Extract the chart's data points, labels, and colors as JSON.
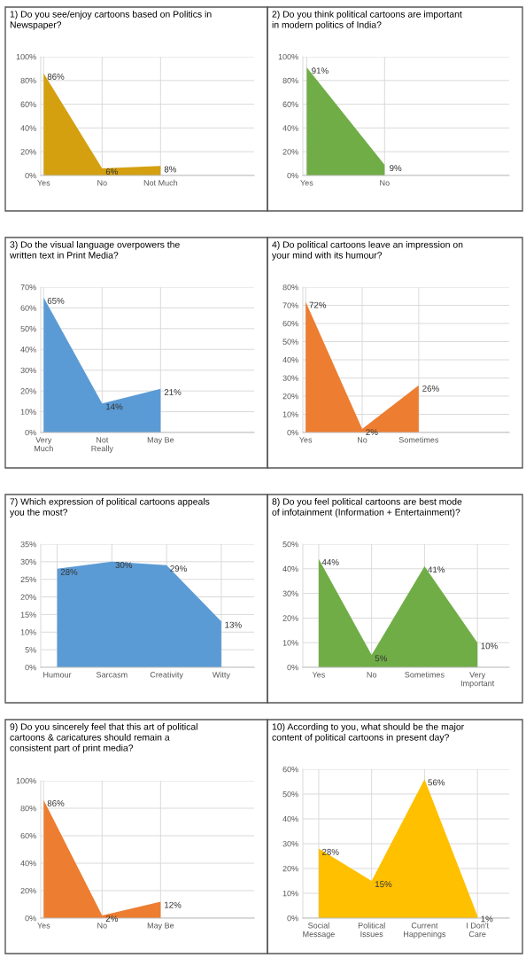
{
  "chart_data": [
    {
      "type": "area",
      "title": "1) Do you see/enjoy cartoons based on Politics in\nNewspaper?",
      "categories": [
        "Yes",
        "No",
        "Not Much"
      ],
      "values": [
        86,
        6,
        8
      ],
      "value_labels": [
        "86%",
        "6%",
        "8%"
      ],
      "color": "#d4a00f",
      "ylim": [
        0,
        100
      ],
      "yticks": [
        {
          "value": 0,
          "label": "0%"
        },
        {
          "value": 20,
          "label": "20%"
        },
        {
          "value": 40,
          "label": "40%"
        },
        {
          "value": 60,
          "label": "60%"
        },
        {
          "value": 80,
          "label": "80%"
        },
        {
          "value": 100,
          "label": "100%"
        }
      ],
      "grid": true
    },
    {
      "type": "area",
      "title": "2) Do you think political cartoons are important\nin modern politics of India?",
      "categories": [
        "Yes",
        "No"
      ],
      "values": [
        91,
        9
      ],
      "value_labels": [
        "91%",
        "9%"
      ],
      "color": "#70ad47",
      "ylim": [
        0,
        100
      ],
      "yticks": [
        {
          "value": 0,
          "label": "0%"
        },
        {
          "value": 20,
          "label": "20%"
        },
        {
          "value": 40,
          "label": "40%"
        },
        {
          "value": 60,
          "label": "60%"
        },
        {
          "value": 80,
          "label": "80%"
        },
        {
          "value": 100,
          "label": "100%"
        }
      ],
      "grid": true
    },
    {
      "type": "area",
      "title": "3) Do the visual language overpowers the\nwritten text in Print Media?",
      "categories": [
        "Very\nMuch",
        "Not\nReally",
        "May Be"
      ],
      "values": [
        65,
        14,
        21
      ],
      "value_labels": [
        "65%",
        "14%",
        "21%"
      ],
      "color": "#5b9bd5",
      "ylim": [
        0,
        70
      ],
      "yticks": [
        {
          "value": 0,
          "label": "0%"
        },
        {
          "value": 10,
          "label": "10%"
        },
        {
          "value": 20,
          "label": "20%"
        },
        {
          "value": 30,
          "label": "30%"
        },
        {
          "value": 40,
          "label": "40%"
        },
        {
          "value": 50,
          "label": "50%"
        },
        {
          "value": 60,
          "label": "60%"
        },
        {
          "value": 70,
          "label": "70%"
        }
      ],
      "grid": true
    },
    {
      "type": "area",
      "title": "4) Do political cartoons leave an impression on\nyour mind with its humour?",
      "categories": [
        "Yes",
        "No",
        "Sometimes"
      ],
      "values": [
        72,
        2,
        26
      ],
      "value_labels": [
        "72%",
        "2%",
        "26%"
      ],
      "color": "#ed7d31",
      "ylim": [
        0,
        80
      ],
      "yticks": [
        {
          "value": 0,
          "label": "0%"
        },
        {
          "value": 10,
          "label": "10%"
        },
        {
          "value": 20,
          "label": "20%"
        },
        {
          "value": 30,
          "label": "30%"
        },
        {
          "value": 40,
          "label": "40%"
        },
        {
          "value": 50,
          "label": "50%"
        },
        {
          "value": 60,
          "label": "60%"
        },
        {
          "value": 70,
          "label": "70%"
        },
        {
          "value": 80,
          "label": "80%"
        }
      ],
      "grid": true
    },
    {
      "type": "area",
      "title": "7) Which expression of political cartoons appeals\nyou the most?",
      "categories": [
        "Humour",
        "Sarcasm",
        "Creativity",
        "Witty"
      ],
      "values": [
        28,
        30,
        29,
        13
      ],
      "value_labels": [
        "28%",
        "30%",
        "29%",
        "13%"
      ],
      "color": "#5b9bd5",
      "ylim": [
        0,
        35
      ],
      "yticks": [
        {
          "value": 0,
          "label": "0%"
        },
        {
          "value": 5,
          "label": "5%"
        },
        {
          "value": 10,
          "label": "10%"
        },
        {
          "value": 15,
          "label": "15%"
        },
        {
          "value": 20,
          "label": "20%"
        },
        {
          "value": 25,
          "label": "25%"
        },
        {
          "value": 30,
          "label": "30%"
        },
        {
          "value": 35,
          "label": "35%"
        }
      ],
      "grid": true
    },
    {
      "type": "area",
      "title": "8) Do you feel political cartoons are best mode\nof infotainment (Information + Entertainment)?",
      "categories": [
        "Yes",
        "No",
        "Sometimes",
        "Very\nImportant"
      ],
      "values": [
        44,
        5,
        41,
        10
      ],
      "value_labels": [
        "44%",
        "5%",
        "41%",
        "10%"
      ],
      "color": "#70ad47",
      "ylim": [
        0,
        50
      ],
      "yticks": [
        {
          "value": 0,
          "label": "0%"
        },
        {
          "value": 10,
          "label": "10%"
        },
        {
          "value": 20,
          "label": "20%"
        },
        {
          "value": 30,
          "label": "30%"
        },
        {
          "value": 40,
          "label": "40%"
        },
        {
          "value": 50,
          "label": "50%"
        }
      ],
      "grid": true
    },
    {
      "type": "area",
      "title": "9) Do you sincerely feel that this art of political\ncartoons & caricatures should remain a\nconsistent part of print media?",
      "categories": [
        "Yes",
        "No",
        "May Be"
      ],
      "values": [
        86,
        2,
        12
      ],
      "value_labels": [
        "86%",
        "2%",
        "12%"
      ],
      "color": "#ed7d31",
      "ylim": [
        0,
        100
      ],
      "yticks": [
        {
          "value": 0,
          "label": "0%"
        },
        {
          "value": 20,
          "label": "20%"
        },
        {
          "value": 40,
          "label": "40%"
        },
        {
          "value": 60,
          "label": "60%"
        },
        {
          "value": 80,
          "label": "80%"
        },
        {
          "value": 100,
          "label": "100%"
        }
      ],
      "grid": true
    },
    {
      "type": "area",
      "title": "10) According to you, what should be the major\ncontent of political cartoons in present day?",
      "categories": [
        "Social\nMessage",
        "Political\nIssues",
        "Current\nHappenings",
        "I Don't\nCare"
      ],
      "values": [
        28,
        15,
        56,
        1
      ],
      "value_labels": [
        "28%",
        "15%",
        "56%",
        "1%"
      ],
      "color": "#ffc000",
      "ylim": [
        0,
        60
      ],
      "yticks": [
        {
          "value": 0,
          "label": "0%"
        },
        {
          "value": 10,
          "label": "10%"
        },
        {
          "value": 20,
          "label": "20%"
        },
        {
          "value": 30,
          "label": "30%"
        },
        {
          "value": 40,
          "label": "40%"
        },
        {
          "value": 50,
          "label": "50%"
        },
        {
          "value": 60,
          "label": "60%"
        }
      ],
      "grid": true
    }
  ]
}
